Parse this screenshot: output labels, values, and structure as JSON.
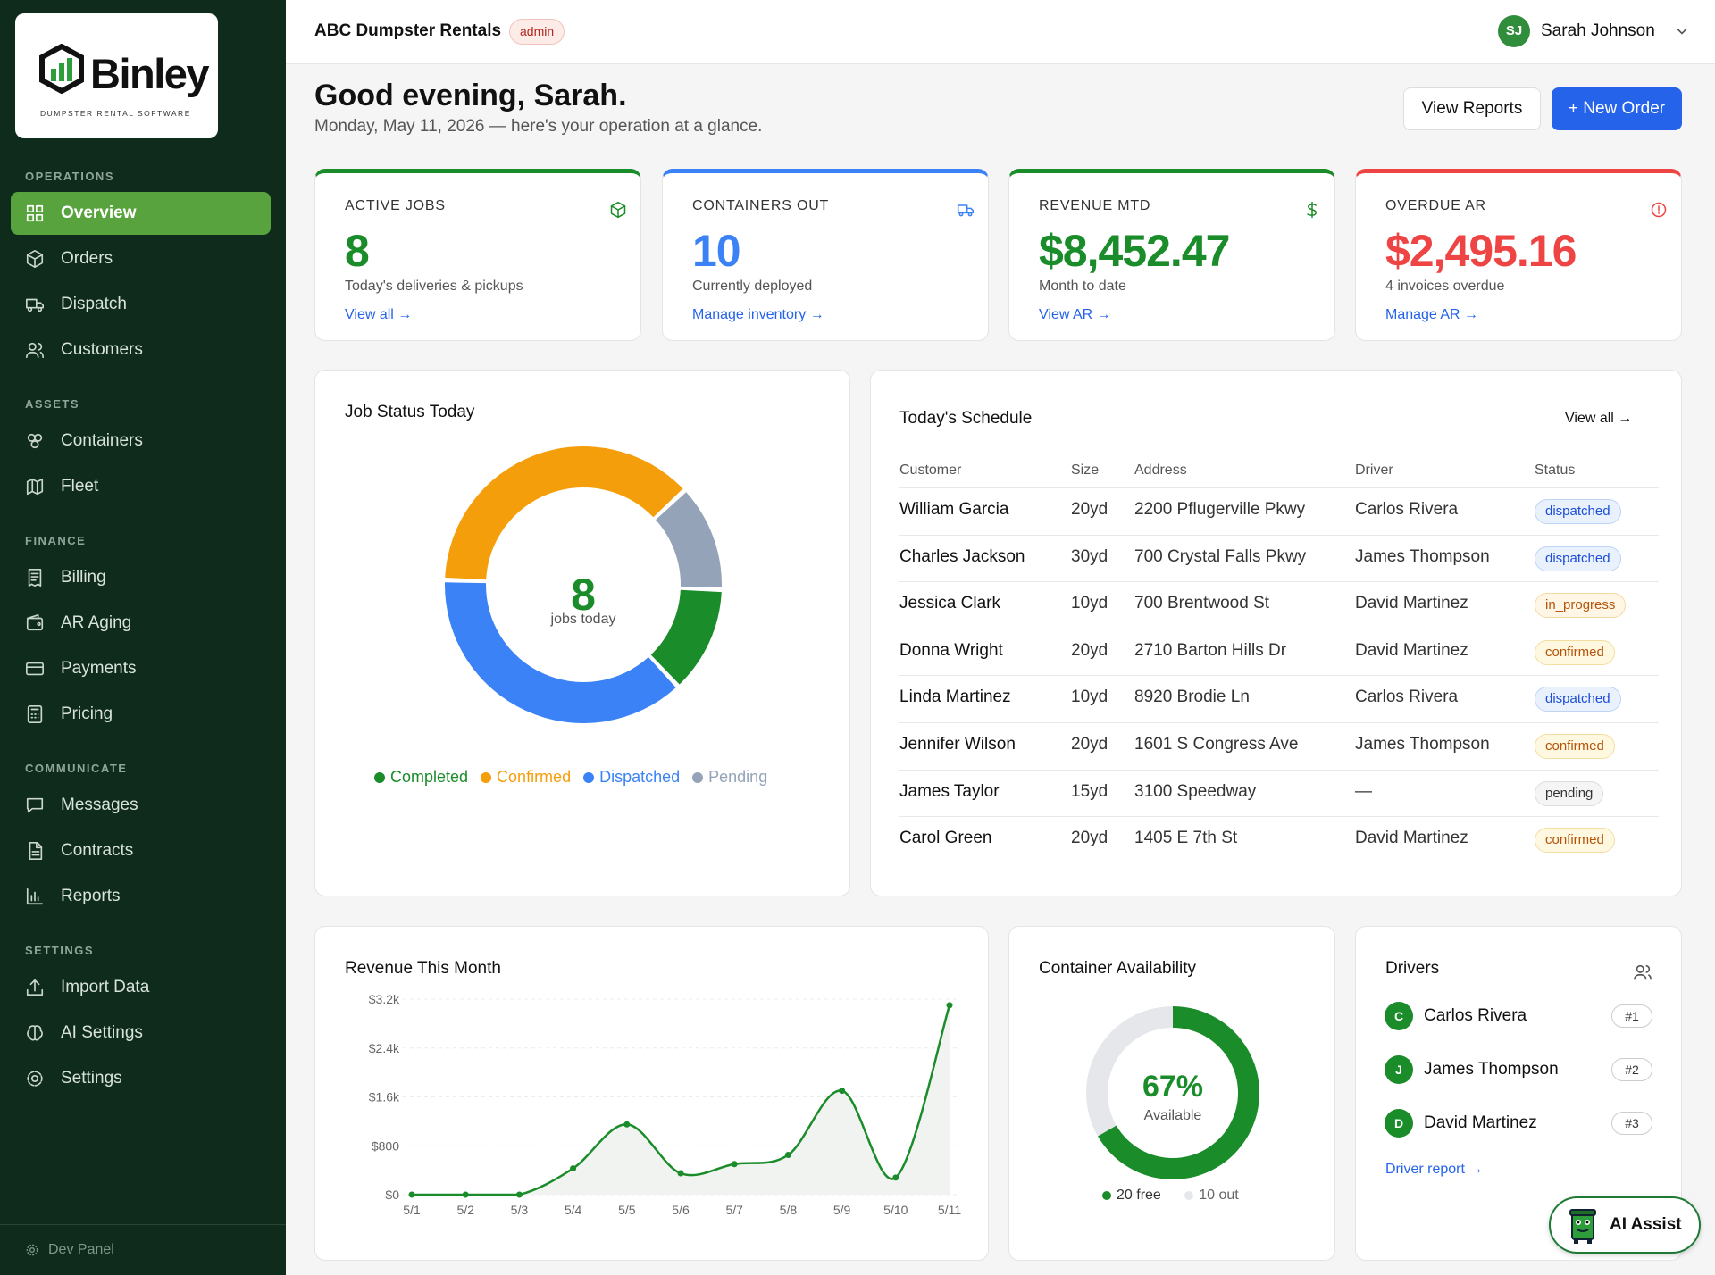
{
  "brand": {
    "name": "Binley",
    "tagline": "DUMPSTER RENTAL SOFTWARE"
  },
  "sidebar": {
    "sections": [
      {
        "label": "OPERATIONS",
        "items": [
          {
            "label": "Overview",
            "icon": "grid-icon",
            "active": true
          },
          {
            "label": "Orders",
            "icon": "box-icon"
          },
          {
            "label": "Dispatch",
            "icon": "truck-icon"
          },
          {
            "label": "Customers",
            "icon": "users-icon"
          }
        ]
      },
      {
        "label": "ASSETS",
        "items": [
          {
            "label": "Containers",
            "icon": "boxes-icon"
          },
          {
            "label": "Fleet",
            "icon": "map-icon"
          }
        ]
      },
      {
        "label": "FINANCE",
        "items": [
          {
            "label": "Billing",
            "icon": "receipt-icon"
          },
          {
            "label": "AR Aging",
            "icon": "wallet-icon"
          },
          {
            "label": "Payments",
            "icon": "card-icon"
          },
          {
            "label": "Pricing",
            "icon": "calculator-icon"
          }
        ]
      },
      {
        "label": "COMMUNICATE",
        "items": [
          {
            "label": "Messages",
            "icon": "message-icon"
          },
          {
            "label": "Contracts",
            "icon": "document-icon"
          },
          {
            "label": "Reports",
            "icon": "bar-chart-icon"
          }
        ]
      },
      {
        "label": "SETTINGS",
        "items": [
          {
            "label": "Import Data",
            "icon": "upload-icon"
          },
          {
            "label": "AI Settings",
            "icon": "brain-icon"
          },
          {
            "label": "Settings",
            "icon": "gear-icon"
          }
        ]
      }
    ],
    "dev_panel": "Dev Panel"
  },
  "topbar": {
    "company": "ABC Dumpster Rentals",
    "role_badge": "admin",
    "user_initials": "SJ",
    "user_name": "Sarah Johnson"
  },
  "header": {
    "greeting": "Good evening, Sarah.",
    "subtitle": "Monday, May 11, 2026 — here's your operation at a glance.",
    "view_reports": "View Reports",
    "new_order": "+ New Order"
  },
  "stats": [
    {
      "label": "ACTIVE JOBS",
      "value": "8",
      "desc": "Today's deliveries & pickups",
      "link": "View all →",
      "color": "#1a8c2a",
      "icon": "box-icon"
    },
    {
      "label": "CONTAINERS OUT",
      "value": "10",
      "desc": "Currently deployed",
      "link": "Manage inventory →",
      "color": "#3b82f6",
      "icon": "truck-icon"
    },
    {
      "label": "REVENUE MTD",
      "value": "$8,452.47",
      "desc": "Month to date",
      "link": "View AR →",
      "color": "#1a8c2a",
      "icon": "dollar-icon"
    },
    {
      "label": "OVERDUE AR",
      "value": "$2,495.16",
      "desc": "4 invoices overdue",
      "link": "Manage AR →",
      "color": "#ef4444",
      "icon": "alert-icon"
    }
  ],
  "job_status": {
    "title": "Job Status Today",
    "center_value": "8",
    "center_label": "jobs today",
    "chart_data": {
      "type": "pie",
      "categories": [
        "Completed",
        "Confirmed",
        "Dispatched",
        "Pending"
      ],
      "values": [
        1,
        3,
        3,
        1
      ],
      "colors": [
        "#1a8c2a",
        "#f59e0b",
        "#3b82f6",
        "#94a3b8"
      ]
    }
  },
  "schedule": {
    "title": "Today's Schedule",
    "view_all": "View all →",
    "columns": [
      "Customer",
      "Size",
      "Address",
      "Driver",
      "Status"
    ],
    "rows": [
      {
        "customer": "William Garcia",
        "size": "20yd",
        "address": "2200 Pflugerville Pkwy",
        "driver": "Carlos Rivera",
        "status": "dispatched"
      },
      {
        "customer": "Charles Jackson",
        "size": "30yd",
        "address": "700 Crystal Falls Pkwy",
        "driver": "James Thompson",
        "status": "dispatched"
      },
      {
        "customer": "Jessica Clark",
        "size": "10yd",
        "address": "700 Brentwood St",
        "driver": "David Martinez",
        "status": "in_progress"
      },
      {
        "customer": "Donna Wright",
        "size": "20yd",
        "address": "2710 Barton Hills Dr",
        "driver": "David Martinez",
        "status": "confirmed"
      },
      {
        "customer": "Linda Martinez",
        "size": "10yd",
        "address": "8920 Brodie Ln",
        "driver": "Carlos Rivera",
        "status": "dispatched"
      },
      {
        "customer": "Jennifer Wilson",
        "size": "20yd",
        "address": "1601 S Congress Ave",
        "driver": "James Thompson",
        "status": "confirmed"
      },
      {
        "customer": "James Taylor",
        "size": "15yd",
        "address": "3100 Speedway",
        "driver": "—",
        "status": "pending"
      },
      {
        "customer": "Carol Green",
        "size": "20yd",
        "address": "1405 E 7th St",
        "driver": "David Martinez",
        "status": "confirmed"
      }
    ]
  },
  "revenue": {
    "title": "Revenue This Month",
    "chart_data": {
      "type": "line",
      "x": [
        "5/1",
        "5/2",
        "5/3",
        "5/4",
        "5/5",
        "5/6",
        "5/7",
        "5/8",
        "5/9",
        "5/10",
        "5/11"
      ],
      "y_ticks": [
        "$0",
        "$800",
        "$1.6k",
        "$2.4k",
        "$3.2k"
      ],
      "ylim": [
        0,
        3200
      ],
      "series": [
        {
          "values": [
            0,
            0,
            0,
            430,
            1150,
            350,
            500,
            650,
            1700,
            280,
            3100
          ]
        }
      ],
      "color": "#1a8c2a"
    }
  },
  "containers": {
    "title": "Container Availability",
    "percent": "67%",
    "label": "Available",
    "legend_free": "20 free",
    "legend_out": "10 out",
    "chart_data": {
      "type": "pie",
      "categories": [
        "free",
        "out"
      ],
      "values": [
        20,
        10
      ],
      "colors": [
        "#1a8c2a",
        "#e5e7eb"
      ]
    }
  },
  "drivers": {
    "title": "Drivers",
    "list": [
      {
        "initial": "C",
        "name": "Carlos Rivera",
        "rank": "#1"
      },
      {
        "initial": "J",
        "name": "James Thompson",
        "rank": "#2"
      },
      {
        "initial": "D",
        "name": "David Martinez",
        "rank": "#3"
      }
    ],
    "report_link": "Driver report →"
  },
  "ai_assist": {
    "label": "AI Assist"
  }
}
